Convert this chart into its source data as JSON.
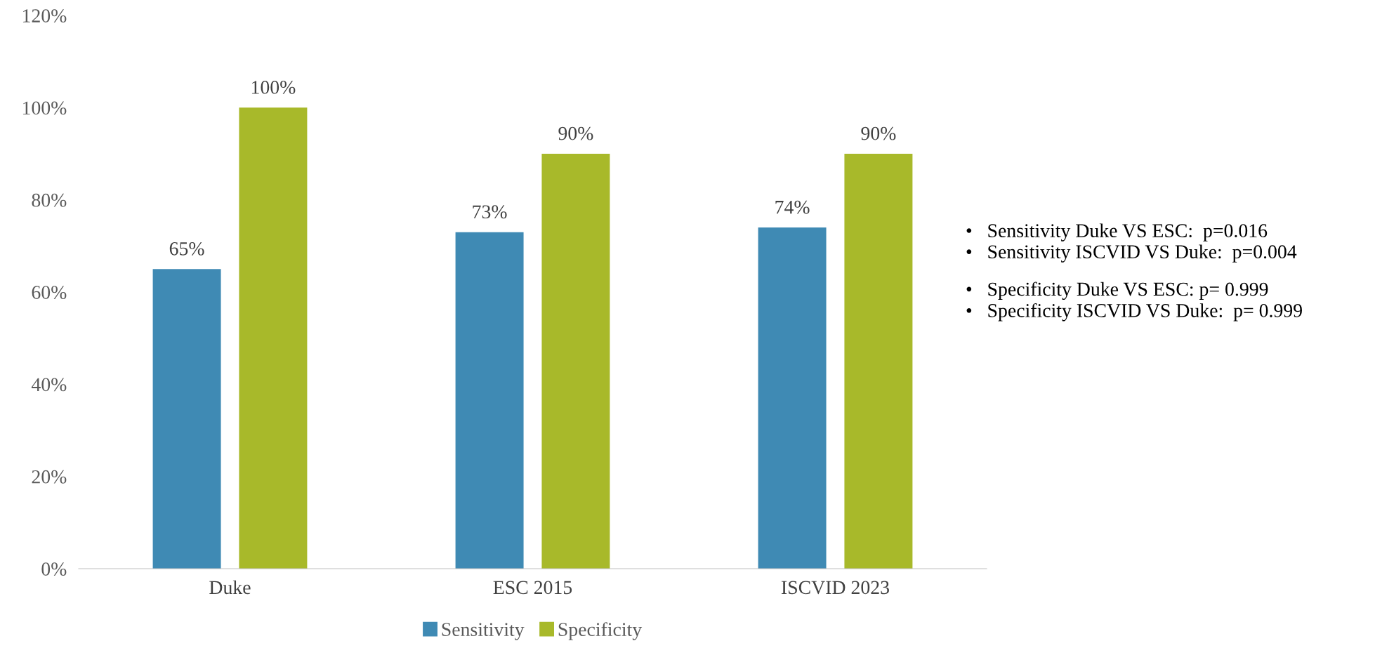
{
  "chart_data": {
    "type": "bar",
    "categories": [
      "Duke",
      "ESC 2015",
      "ISCVID 2023"
    ],
    "series": [
      {
        "name": "Sensitivity",
        "color": "#3f8ab4",
        "values": [
          65,
          73,
          74
        ],
        "value_labels": [
          "65%",
          "73%",
          "74%"
        ]
      },
      {
        "name": "Specificity",
        "color": "#a8b92a",
        "values": [
          100,
          90,
          90
        ],
        "value_labels": [
          "100%",
          "90%",
          "90%"
        ]
      }
    ],
    "ylim": [
      0,
      120
    ],
    "yticks": [
      {
        "value": 0,
        "label": "0%"
      },
      {
        "value": 20,
        "label": "20%"
      },
      {
        "value": 40,
        "label": "40%"
      },
      {
        "value": 60,
        "label": "60%"
      },
      {
        "value": 80,
        "label": "80%"
      },
      {
        "value": 100,
        "label": "100%"
      },
      {
        "value": 120,
        "label": "120%"
      }
    ],
    "grid": false,
    "legend": "bottom",
    "annotations": [
      "•   Sensitivity Duke VS ESC:  p=0.016\n•   Sensitivity ISCVID VS Duke:  p=0.004",
      "•   Specificity Duke VS ESC: p= 0.999\n•   Specificity ISCVID VS Duke:  p= 0.999"
    ]
  }
}
